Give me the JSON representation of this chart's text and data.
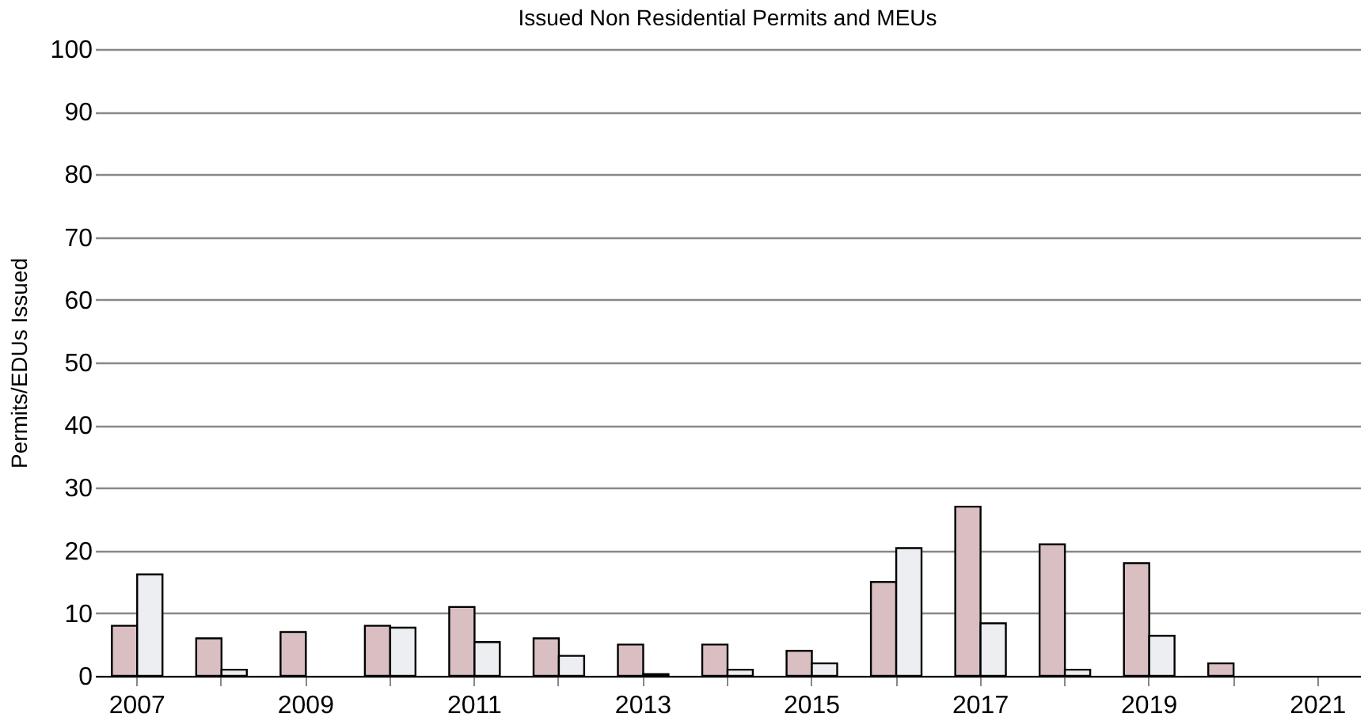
{
  "chart_data": {
    "type": "bar",
    "title": "Issued Non Residential Permits and MEUs",
    "ylabel": "Permits/EDUs Issued",
    "categories": [
      "2007",
      null,
      "2009",
      null,
      "2011",
      null,
      "2013",
      null,
      "2015",
      null,
      "2017",
      null,
      "2019",
      null,
      "2021"
    ],
    "series": [
      {
        "color": "#d9bfc2",
        "values": [
          8,
          6,
          7,
          8,
          11,
          6,
          5,
          5,
          4,
          15,
          27,
          21,
          18,
          2,
          null
        ]
      },
      {
        "color": "#eceef2",
        "values": [
          16.2,
          1,
          null,
          7.7,
          5.4,
          3.2,
          0.3,
          1,
          2,
          20.4,
          8.4,
          1,
          6.4,
          null,
          null
        ]
      }
    ],
    "ylim": [
      0,
      100
    ],
    "yticks": [
      0,
      10,
      20,
      30,
      40,
      50,
      60,
      70,
      80,
      90,
      100
    ],
    "grid": "y"
  }
}
